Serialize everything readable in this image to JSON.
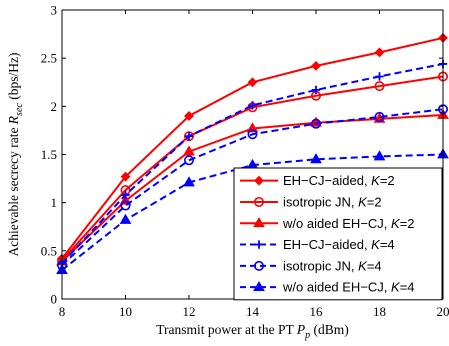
{
  "chart_data": {
    "type": "line",
    "xlabel": "Transmit power at the PT P_p (dBm)",
    "xlabel_parts": {
      "main": "Transmit power at the PT ",
      "symbol": "P",
      "subscript": "p",
      "unit": " (dBm)"
    },
    "ylabel": "Achievable secrecy rate R_sec (bps/Hz)",
    "ylabel_parts": {
      "main": "Achievable secrecy rate ",
      "symbol": "R",
      "subscript": "sec",
      "unit": " (bps/Hz)"
    },
    "xlim": [
      8,
      20
    ],
    "ylim": [
      0,
      3
    ],
    "x_ticks": [
      "8",
      "10",
      "12",
      "14",
      "16",
      "18",
      "20"
    ],
    "y_ticks": [
      "0",
      "0.5",
      "1",
      "1.5",
      "2",
      "2.5",
      "3"
    ],
    "grid": false,
    "legend_position": "bottom-right",
    "x": [
      8,
      10,
      12,
      14,
      16,
      18,
      20
    ],
    "series": [
      {
        "name": "EH−CJ−aided, K=2",
        "label_main": "EH−CJ−aided, ",
        "label_k": "=2",
        "color": "#ff0000",
        "dash": "solid",
        "marker": "diamond",
        "values": [
          0.42,
          1.27,
          1.9,
          2.25,
          2.42,
          2.56,
          2.71
        ]
      },
      {
        "name": "isotropic JN, K=2",
        "label_main": "isotropic JN, ",
        "label_k": "=2",
        "color": "#ff0000",
        "dash": "solid",
        "marker": "circle",
        "values": [
          0.4,
          1.13,
          1.69,
          1.99,
          2.11,
          2.21,
          2.31
        ]
      },
      {
        "name": "w/o aided EH−CJ, K=2",
        "label_main": "w/o aided EH−CJ, ",
        "label_k": "=2",
        "color": "#ff0000",
        "dash": "solid",
        "marker": "triangle",
        "values": [
          0.39,
          1.02,
          1.53,
          1.77,
          1.83,
          1.87,
          1.91
        ]
      },
      {
        "name": "EH−CJ−aided, K=4",
        "label_main": "EH−CJ−aided, ",
        "label_k": "=4",
        "color": "#0000ff",
        "dash": "dashed",
        "marker": "plus",
        "values": [
          0.37,
          1.08,
          1.69,
          2.01,
          2.17,
          2.31,
          2.44
        ]
      },
      {
        "name": "isotropic JN, K=4",
        "label_main": "isotropic JN, ",
        "label_k": "=4",
        "color": "#0000ff",
        "dash": "dashed",
        "marker": "circle",
        "values": [
          0.35,
          0.97,
          1.44,
          1.71,
          1.82,
          1.89,
          1.97
        ]
      },
      {
        "name": "w/o aided EH−CJ, K=4",
        "label_main": "w/o aided EH−CJ, ",
        "label_k": "=4",
        "color": "#0000ff",
        "dash": "dashed",
        "marker": "triangle",
        "values": [
          0.3,
          0.82,
          1.21,
          1.39,
          1.45,
          1.48,
          1.5
        ]
      }
    ]
  }
}
